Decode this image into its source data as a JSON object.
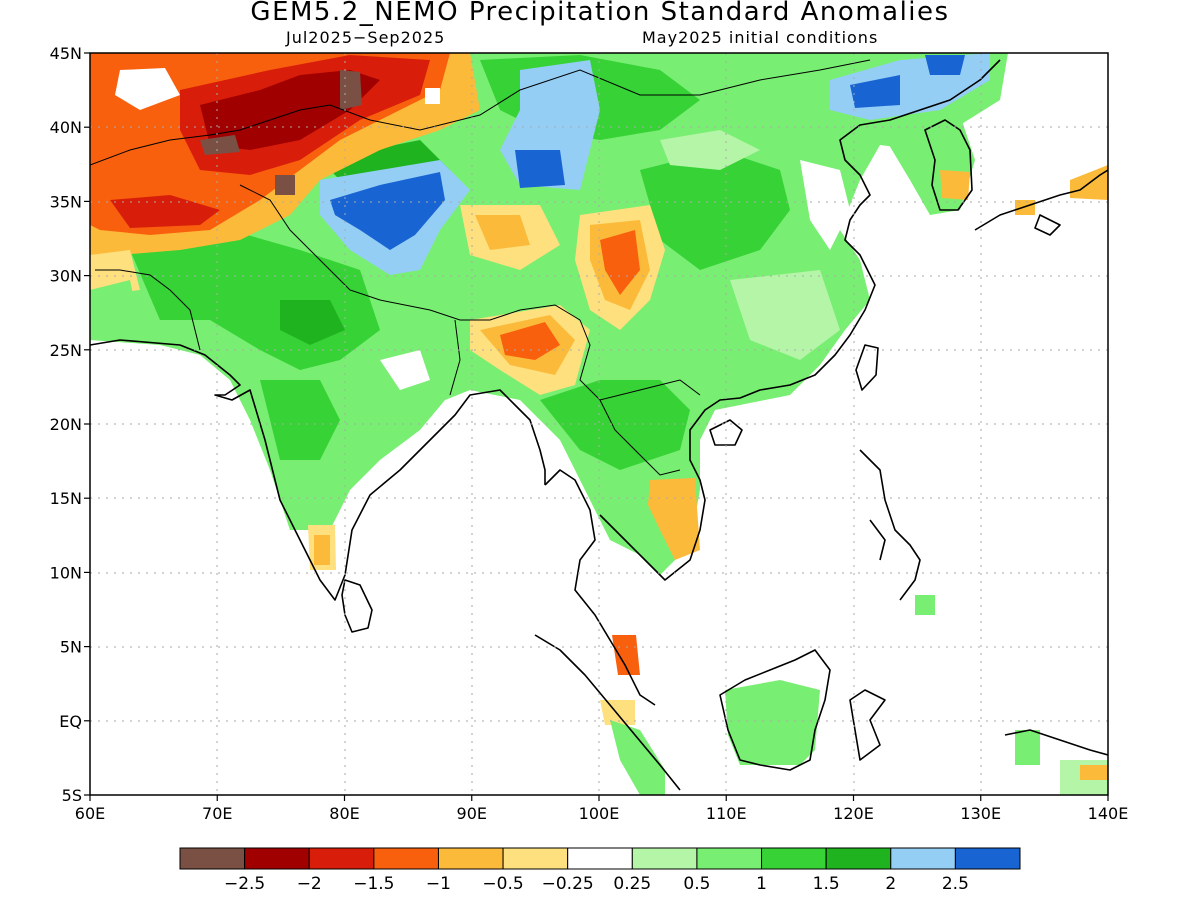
{
  "title": "GEM5.2_NEMO Precipitation Standard Anomalies",
  "subtitle_left": "Jul2025−Sep2025",
  "subtitle_right": "May2025 initial conditions",
  "lon_ticks": [
    "60E",
    "70E",
    "80E",
    "90E",
    "100E",
    "110E",
    "120E",
    "130E",
    "140E"
  ],
  "lat_ticks": [
    "45N",
    "40N",
    "35N",
    "30N",
    "25N",
    "20N",
    "15N",
    "10N",
    "5N",
    "EQ",
    "5S"
  ],
  "colorbar": {
    "labels": [
      "−2.5",
      "−2",
      "−1.5",
      "−1",
      "−0.5",
      "−0.25",
      "0.25",
      "0.5",
      "1",
      "1.5",
      "2",
      "2.5"
    ],
    "colors": [
      "#7a5045",
      "#a00000",
      "#d81e0a",
      "#f8600e",
      "#fcba3a",
      "#fee07f",
      "#ffffff",
      "#b4f5a8",
      "#78ee72",
      "#36d236",
      "#1fb41f",
      "#94cef5",
      "#1864d2"
    ]
  }
}
